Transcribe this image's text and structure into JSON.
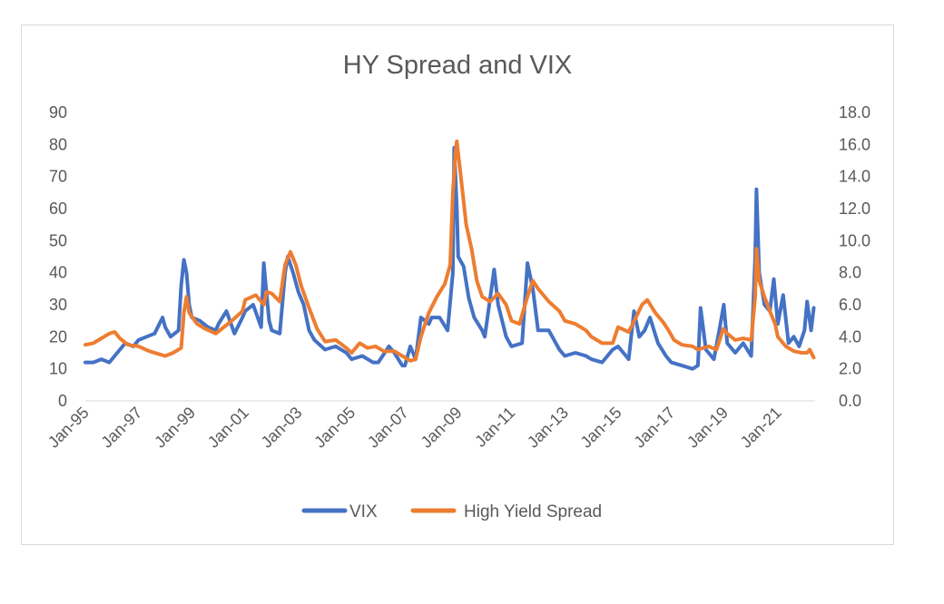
{
  "chart_data": {
    "type": "line",
    "title": "HY Spread and VIX",
    "x_tick_labels": [
      "Jan-95",
      "Jan-97",
      "Jan-99",
      "Jan-01",
      "Jan-03",
      "Jan-05",
      "Jan-07",
      "Jan-09",
      "Jan-11",
      "Jan-13",
      "Jan-15",
      "Jan-17",
      "Jan-19",
      "Jan-21"
    ],
    "y_left": {
      "ticks": [
        "0",
        "10",
        "20",
        "30",
        "40",
        "50",
        "60",
        "70",
        "80",
        "90"
      ],
      "ylim": [
        0,
        90
      ]
    },
    "y_right": {
      "ticks": [
        "0.0",
        "2.0",
        "4.0",
        "6.0",
        "8.0",
        "10.0",
        "12.0",
        "14.0",
        "16.0",
        "18.0"
      ],
      "ylim": [
        0,
        18
      ]
    },
    "xlim": [
      1995.0,
      2022.4
    ],
    "grid": false,
    "legend_position": "bottom",
    "series": [
      {
        "name": "VIX",
        "axis": "left",
        "color": "#4472C4",
        "points": [
          [
            1995.0,
            12
          ],
          [
            1995.3,
            12
          ],
          [
            1995.6,
            13
          ],
          [
            1995.9,
            12
          ],
          [
            1996.2,
            15
          ],
          [
            1996.5,
            18
          ],
          [
            1996.8,
            17
          ],
          [
            1997.0,
            19
          ],
          [
            1997.3,
            20
          ],
          [
            1997.6,
            21
          ],
          [
            1997.9,
            26
          ],
          [
            1998.0,
            23
          ],
          [
            1998.2,
            20
          ],
          [
            1998.5,
            22
          ],
          [
            1998.6,
            36
          ],
          [
            1998.7,
            44
          ],
          [
            1998.8,
            40
          ],
          [
            1998.9,
            30
          ],
          [
            1999.0,
            26
          ],
          [
            1999.3,
            25
          ],
          [
            1999.6,
            23
          ],
          [
            1999.9,
            22
          ],
          [
            2000.0,
            24
          ],
          [
            2000.3,
            28
          ],
          [
            2000.6,
            21
          ],
          [
            2000.9,
            26
          ],
          [
            2001.0,
            28
          ],
          [
            2001.3,
            30
          ],
          [
            2001.6,
            23
          ],
          [
            2001.7,
            43
          ],
          [
            2001.8,
            34
          ],
          [
            2001.9,
            25
          ],
          [
            2002.0,
            22
          ],
          [
            2002.3,
            21
          ],
          [
            2002.5,
            40
          ],
          [
            2002.6,
            45
          ],
          [
            2002.8,
            40
          ],
          [
            2003.0,
            34
          ],
          [
            2003.2,
            30
          ],
          [
            2003.4,
            22
          ],
          [
            2003.6,
            19
          ],
          [
            2004.0,
            16
          ],
          [
            2004.4,
            17
          ],
          [
            2004.8,
            15
          ],
          [
            2005.0,
            13
          ],
          [
            2005.4,
            14
          ],
          [
            2005.8,
            12
          ],
          [
            2006.0,
            12
          ],
          [
            2006.4,
            17
          ],
          [
            2006.6,
            15
          ],
          [
            2006.9,
            11
          ],
          [
            2007.0,
            11
          ],
          [
            2007.2,
            17
          ],
          [
            2007.4,
            13
          ],
          [
            2007.6,
            26
          ],
          [
            2007.9,
            24
          ],
          [
            2008.0,
            26
          ],
          [
            2008.3,
            26
          ],
          [
            2008.6,
            22
          ],
          [
            2008.8,
            40
          ],
          [
            2008.85,
            79
          ],
          [
            2008.95,
            60
          ],
          [
            2009.0,
            45
          ],
          [
            2009.2,
            42
          ],
          [
            2009.4,
            32
          ],
          [
            2009.6,
            26
          ],
          [
            2009.9,
            22
          ],
          [
            2010.0,
            20
          ],
          [
            2010.35,
            41
          ],
          [
            2010.5,
            30
          ],
          [
            2010.8,
            20
          ],
          [
            2011.0,
            17
          ],
          [
            2011.4,
            18
          ],
          [
            2011.6,
            43
          ],
          [
            2011.8,
            35
          ],
          [
            2012.0,
            22
          ],
          [
            2012.4,
            22
          ],
          [
            2012.8,
            16
          ],
          [
            2013.0,
            14
          ],
          [
            2013.4,
            15
          ],
          [
            2013.8,
            14
          ],
          [
            2014.0,
            13
          ],
          [
            2014.4,
            12
          ],
          [
            2014.8,
            16
          ],
          [
            2015.0,
            17
          ],
          [
            2015.4,
            13
          ],
          [
            2015.6,
            28
          ],
          [
            2015.8,
            20
          ],
          [
            2016.0,
            22
          ],
          [
            2016.2,
            26
          ],
          [
            2016.5,
            18
          ],
          [
            2016.8,
            14
          ],
          [
            2017.0,
            12
          ],
          [
            2017.4,
            11
          ],
          [
            2017.8,
            10
          ],
          [
            2018.0,
            11
          ],
          [
            2018.1,
            29
          ],
          [
            2018.3,
            16
          ],
          [
            2018.6,
            13
          ],
          [
            2018.8,
            22
          ],
          [
            2018.97,
            30
          ],
          [
            2019.1,
            18
          ],
          [
            2019.4,
            15
          ],
          [
            2019.7,
            18
          ],
          [
            2020.0,
            14
          ],
          [
            2020.15,
            45
          ],
          [
            2020.2,
            66
          ],
          [
            2020.3,
            40
          ],
          [
            2020.5,
            30
          ],
          [
            2020.7,
            28
          ],
          [
            2020.85,
            38
          ],
          [
            2021.0,
            24
          ],
          [
            2021.2,
            33
          ],
          [
            2021.4,
            18
          ],
          [
            2021.6,
            20
          ],
          [
            2021.8,
            17
          ],
          [
            2022.0,
            22
          ],
          [
            2022.1,
            31
          ],
          [
            2022.25,
            22
          ],
          [
            2022.35,
            29
          ]
        ]
      },
      {
        "name": "High Yield Spread",
        "axis": "right",
        "color": "#ED7D31",
        "points": [
          [
            1995.0,
            3.5
          ],
          [
            1995.3,
            3.6
          ],
          [
            1995.6,
            3.9
          ],
          [
            1995.9,
            4.2
          ],
          [
            1996.1,
            4.3
          ],
          [
            1996.3,
            3.9
          ],
          [
            1996.6,
            3.5
          ],
          [
            1997.0,
            3.4
          ],
          [
            1997.4,
            3.1
          ],
          [
            1997.8,
            2.9
          ],
          [
            1998.0,
            2.8
          ],
          [
            1998.3,
            3.0
          ],
          [
            1998.6,
            3.3
          ],
          [
            1998.7,
            5.5
          ],
          [
            1998.8,
            6.5
          ],
          [
            1998.9,
            5.5
          ],
          [
            1999.2,
            4.8
          ],
          [
            1999.5,
            4.5
          ],
          [
            1999.9,
            4.2
          ],
          [
            2000.2,
            4.6
          ],
          [
            2000.5,
            5.0
          ],
          [
            2000.9,
            5.6
          ],
          [
            2001.0,
            6.3
          ],
          [
            2001.4,
            6.6
          ],
          [
            2001.7,
            6.0
          ],
          [
            2001.8,
            6.8
          ],
          [
            2002.0,
            6.7
          ],
          [
            2002.3,
            6.2
          ],
          [
            2002.5,
            8.5
          ],
          [
            2002.7,
            9.3
          ],
          [
            2002.9,
            8.5
          ],
          [
            2003.1,
            7.2
          ],
          [
            2003.4,
            5.8
          ],
          [
            2003.7,
            4.5
          ],
          [
            2004.0,
            3.7
          ],
          [
            2004.4,
            3.8
          ],
          [
            2004.8,
            3.3
          ],
          [
            2005.0,
            3.0
          ],
          [
            2005.3,
            3.6
          ],
          [
            2005.6,
            3.3
          ],
          [
            2005.9,
            3.4
          ],
          [
            2006.2,
            3.1
          ],
          [
            2006.6,
            3.1
          ],
          [
            2006.9,
            2.8
          ],
          [
            2007.2,
            2.5
          ],
          [
            2007.4,
            2.6
          ],
          [
            2007.6,
            4.0
          ],
          [
            2007.9,
            5.5
          ],
          [
            2008.2,
            6.5
          ],
          [
            2008.5,
            7.3
          ],
          [
            2008.7,
            8.5
          ],
          [
            2008.8,
            13.0
          ],
          [
            2008.9,
            15.5
          ],
          [
            2008.95,
            16.2
          ],
          [
            2009.1,
            14.0
          ],
          [
            2009.3,
            11.0
          ],
          [
            2009.5,
            9.5
          ],
          [
            2009.7,
            7.5
          ],
          [
            2009.9,
            6.5
          ],
          [
            2010.2,
            6.2
          ],
          [
            2010.5,
            6.7
          ],
          [
            2010.8,
            6.0
          ],
          [
            2011.0,
            5.0
          ],
          [
            2011.3,
            4.8
          ],
          [
            2011.6,
            6.5
          ],
          [
            2011.8,
            7.5
          ],
          [
            2012.0,
            7.0
          ],
          [
            2012.4,
            6.2
          ],
          [
            2012.8,
            5.6
          ],
          [
            2013.0,
            5.0
          ],
          [
            2013.4,
            4.8
          ],
          [
            2013.8,
            4.4
          ],
          [
            2014.0,
            4.0
          ],
          [
            2014.4,
            3.6
          ],
          [
            2014.8,
            3.6
          ],
          [
            2015.0,
            4.6
          ],
          [
            2015.4,
            4.3
          ],
          [
            2015.7,
            5.3
          ],
          [
            2015.9,
            6.0
          ],
          [
            2016.1,
            6.3
          ],
          [
            2016.4,
            5.5
          ],
          [
            2016.7,
            4.9
          ],
          [
            2016.9,
            4.4
          ],
          [
            2017.1,
            3.8
          ],
          [
            2017.4,
            3.5
          ],
          [
            2017.8,
            3.4
          ],
          [
            2018.0,
            3.2
          ],
          [
            2018.4,
            3.4
          ],
          [
            2018.7,
            3.2
          ],
          [
            2018.95,
            4.5
          ],
          [
            2019.1,
            4.2
          ],
          [
            2019.4,
            3.8
          ],
          [
            2019.7,
            3.9
          ],
          [
            2020.0,
            3.8
          ],
          [
            2020.15,
            6.5
          ],
          [
            2020.2,
            9.5
          ],
          [
            2020.3,
            7.5
          ],
          [
            2020.5,
            6.5
          ],
          [
            2020.7,
            5.6
          ],
          [
            2020.9,
            4.8
          ],
          [
            2021.0,
            4.0
          ],
          [
            2021.3,
            3.4
          ],
          [
            2021.6,
            3.1
          ],
          [
            2021.9,
            3.0
          ],
          [
            2022.1,
            3.0
          ],
          [
            2022.2,
            3.2
          ],
          [
            2022.35,
            2.7
          ]
        ]
      }
    ]
  }
}
